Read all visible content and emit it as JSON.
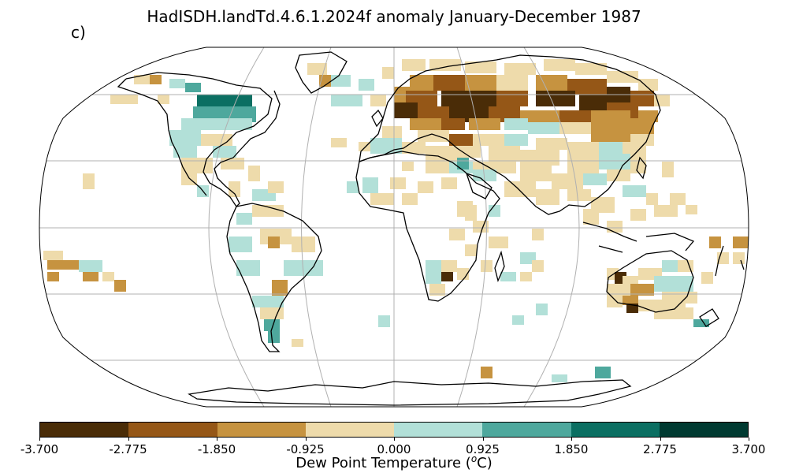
{
  "title": "HadISDH.landTd.4.6.1.2024f anomaly January-December 1987",
  "panel_label": "c)",
  "colorbar": {
    "label_prefix": "Dew Point Temperature (",
    "label_unit_sup": "o",
    "label_suffix": "C)",
    "colors": [
      "#543005",
      "#8c510a",
      "#bf812d",
      "#dfc27d",
      "#f6e8c3",
      "#c7eae5",
      "#80cdc1",
      "#35978f",
      "#01665e",
      "#003c30"
    ],
    "segment_colors": [
      "#4a2c07",
      "#955717",
      "#c69340",
      "#eedbab",
      "#b2e0d8",
      "#4ea89d",
      "#0b6f62",
      "#003a31"
    ],
    "ticks": [
      "-3.700",
      "-2.775",
      "-1.850",
      "-0.925",
      "0.000",
      "0.925",
      "1.850",
      "2.775",
      "3.700"
    ]
  },
  "map": {
    "projection": "Robinson",
    "grid_color": "#b0b0b0",
    "coast_color": "#000000"
  }
}
